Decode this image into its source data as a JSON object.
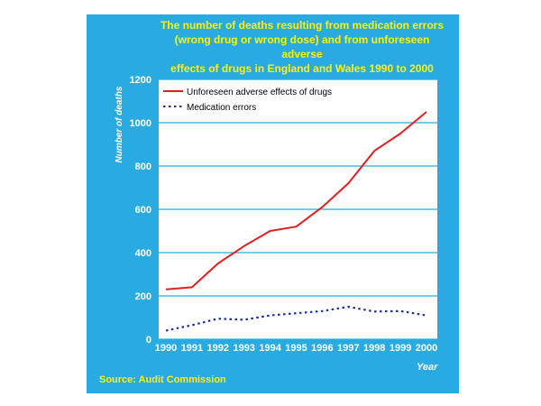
{
  "chart_data": {
    "type": "line",
    "title_lines": [
      "The number of deaths resulting from medication errors",
      "(wrong drug or wrong dose) and from unforeseen adverse",
      "effects of drugs in England and Wales 1990 to 2000"
    ],
    "xlabel": "Year",
    "ylabel": "Number of deaths",
    "x": [
      1990,
      1991,
      1992,
      1993,
      1994,
      1995,
      1996,
      1997,
      1998,
      1999,
      2000
    ],
    "ylim": [
      0,
      1200
    ],
    "yticks": [
      0,
      200,
      400,
      600,
      800,
      1000,
      1200
    ],
    "grid": "horizontal",
    "legend_position": "top-left",
    "series": [
      {
        "name": "Unforeseen adverse effects of drugs",
        "values": [
          230,
          240,
          350,
          430,
          500,
          520,
          610,
          720,
          870,
          950,
          1050
        ],
        "color": "#e02020",
        "style": "solid"
      },
      {
        "name": "Medication errors",
        "values": [
          40,
          65,
          95,
          90,
          110,
          120,
          130,
          150,
          128,
          130,
          110
        ],
        "color": "#1a2fa8",
        "style": "dotted"
      }
    ]
  },
  "source": "Source: Audit Commission",
  "colors": {
    "panel": "#29abe2",
    "plot_bg": "#ffffff",
    "title": "#fff200",
    "gridline": "#29abe2"
  }
}
